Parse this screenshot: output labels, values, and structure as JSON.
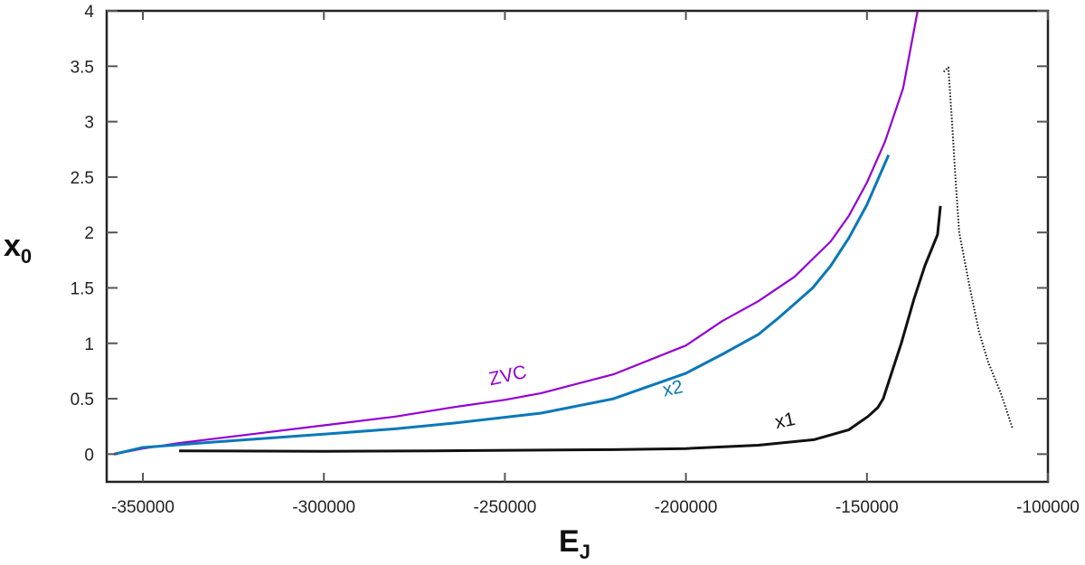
{
  "chart_data": {
    "type": "line",
    "title": "",
    "xlabel": "E",
    "xlabel_sub": "J",
    "ylabel": "x",
    "ylabel_sub": "0",
    "xlim": [
      -360000,
      -100000
    ],
    "ylim": [
      -0.25,
      4
    ],
    "grid": false,
    "x_ticks": [
      -350000,
      -300000,
      -250000,
      -200000,
      -150000,
      -100000
    ],
    "x_tick_labels": [
      "-350000",
      "-300000",
      "-250000",
      "-200000",
      "-150000",
      "-100000"
    ],
    "y_ticks": [
      0,
      0.5,
      1,
      1.5,
      2,
      2.5,
      3,
      3.5,
      4
    ],
    "y_tick_labels": [
      "0",
      "0.5",
      "1",
      "1.5",
      "2",
      "2.5",
      "3",
      "3.5",
      "4"
    ],
    "series": [
      {
        "name": "ZVC",
        "color": "#9400d3",
        "label_at": [
          -254000,
          0.62
        ],
        "segments": [
          [
            [
              -358000,
              0
            ],
            [
              -350000,
              0.05
            ],
            [
              -340000,
              0.1
            ],
            [
              -330000,
              0.14
            ],
            [
              -320000,
              0.18
            ],
            [
              -300000,
              0.26
            ],
            [
              -280000,
              0.34
            ],
            [
              -265000,
              0.42
            ],
            [
              -250000,
              0.49
            ],
            [
              -240000,
              0.55
            ],
            [
              -220000,
              0.72
            ],
            [
              -200000,
              0.98
            ],
            [
              -190000,
              1.2
            ],
            [
              -180000,
              1.38
            ],
            [
              -170000,
              1.6
            ],
            [
              -160000,
              1.92
            ],
            [
              -155000,
              2.15
            ],
            [
              -150000,
              2.45
            ],
            [
              -145000,
              2.82
            ],
            [
              -140000,
              3.3
            ],
            [
              -136000,
              4.0
            ]
          ]
        ]
      },
      {
        "name": "x2",
        "color": "#0a78b8",
        "label_at": [
          -206000,
          0.52
        ],
        "segments": [
          [
            [
              -358000,
              0
            ],
            [
              -350000,
              0.06
            ],
            [
              -330000,
              0.11
            ],
            [
              -300000,
              0.18
            ],
            [
              -280000,
              0.23
            ],
            [
              -264000,
              0.28
            ],
            [
              -240000,
              0.37
            ],
            [
              -220000,
              0.5
            ],
            [
              -200000,
              0.73
            ],
            [
              -190000,
              0.9
            ],
            [
              -180000,
              1.08
            ],
            [
              -174000,
              1.24
            ],
            [
              -165000,
              1.5
            ],
            [
              -160000,
              1.7
            ],
            [
              -155000,
              1.95
            ],
            [
              -150000,
              2.25
            ],
            [
              -144000,
              2.7
            ]
          ]
        ]
      },
      {
        "name": "x1",
        "color": "#111111",
        "label_at": [
          -175000,
          0.23
        ],
        "segments": [
          [
            [
              -340000,
              0.03
            ],
            [
              -300000,
              0.025
            ],
            [
              -270000,
              0.03
            ],
            [
              -220000,
              0.04
            ],
            [
              -200000,
              0.05
            ],
            [
              -180000,
              0.08
            ],
            [
              -164700,
              0.13
            ],
            [
              -155000,
              0.22
            ],
            [
              -149700,
              0.34
            ],
            [
              -147000,
              0.42
            ],
            [
              -145500,
              0.5
            ],
            [
              -143000,
              0.75
            ],
            [
              -140500,
              1.0
            ],
            [
              -137000,
              1.4
            ],
            [
              -134000,
              1.7
            ],
            [
              -130500,
              1.98
            ],
            [
              -129700,
              2.24
            ]
          ],
          [
            [
              -128800,
              3.45
            ],
            [
              -127500,
              3.49
            ],
            [
              -126500,
              3.0
            ],
            [
              -125500,
              2.47
            ],
            [
              -124500,
              2.0
            ],
            [
              -121500,
              1.49
            ],
            [
              -119000,
              1.1
            ],
            [
              -116500,
              0.83
            ],
            [
              -113000,
              0.55
            ],
            [
              -109750,
              0.23
            ]
          ]
        ]
      }
    ]
  }
}
